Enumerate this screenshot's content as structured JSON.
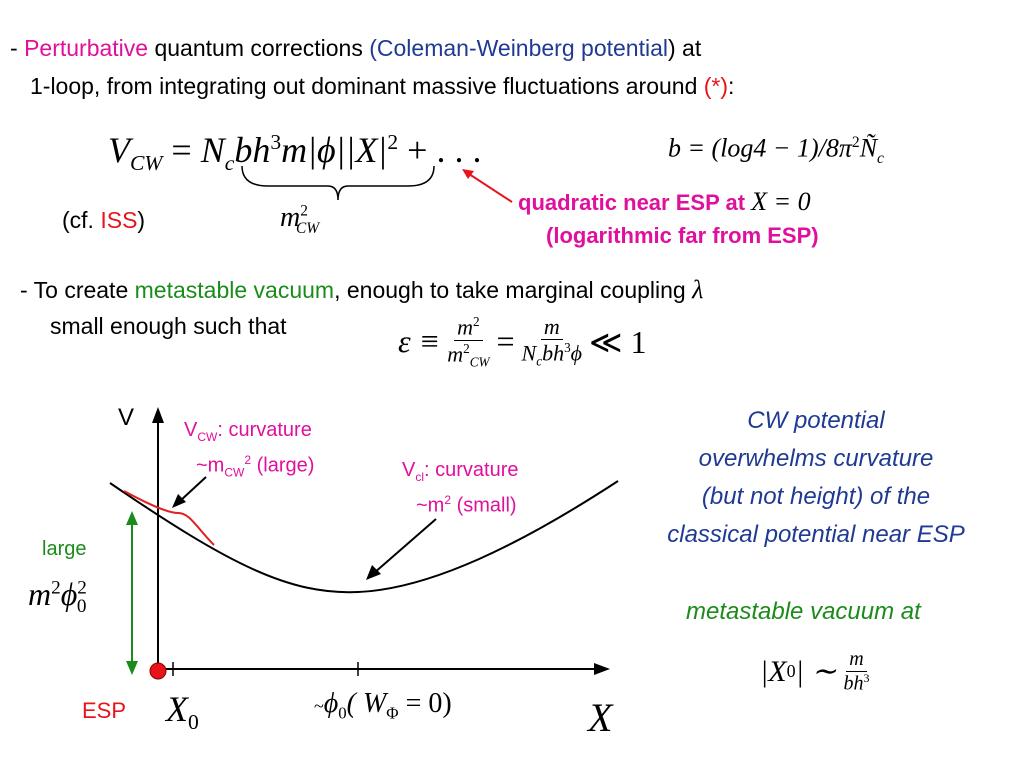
{
  "bullet1": {
    "dash": "- ",
    "perturbative": "Perturbative",
    "part_a": " quantum corrections ",
    "cw_paren": "(Coleman-Weinberg potential",
    "part_b": ") at",
    "line2": "1-loop, from integrating out dominant massive fluctuations around ",
    "star": "(*)",
    "colon": ":"
  },
  "eq_cw": {
    "lhs": "V",
    "lhs_sub": "CW",
    "eq": " = ",
    "term": "N",
    "term_sub": "c",
    "term_rest": "bh",
    "exp3": "3",
    "m_phi": "m|ϕ|",
    "absX": "|X|",
    "exp2": "2",
    "dots": " + . . .",
    "brace_label": "m",
    "brace_label_sup": "2",
    "brace_label_sub": "CW"
  },
  "eq_b": {
    "text": "b = (log4 − 1)/8π",
    "sup": "2",
    "n": "Ñ",
    "n_sub": "c"
  },
  "cf_iss": {
    "open": "(cf. ",
    "iss": "ISS",
    "close": ")"
  },
  "note_quadratic": {
    "line1": "quadratic near ESP at ",
    "x0": "X = 0",
    "line2": "(logarithmic far from ESP)"
  },
  "bullet2": {
    "dash": "-  To create ",
    "metastable": "metastable vacuum",
    "rest": ", enough to take marginal coupling ",
    "lambda": "λ",
    "line2": "small enough such that"
  },
  "eq_eps": {
    "eps": "ε ≡ ",
    "num1": "m",
    "num1_sup": "2",
    "den1": "m",
    "den1_sup": "2",
    "den1_sub": "CW",
    "eq": " = ",
    "num2": "m",
    "den2": "N",
    "den2_sub": "c",
    "den2_rest": "bh",
    "den2_sup": "3",
    "den2_phi": "ϕ",
    "ll": " ≪ 1"
  },
  "graph": {
    "v_axis": "V",
    "x_axis": "X",
    "vcw_label_a": "V",
    "vcw_label_sub": "CW",
    "vcw_label_b": ": curvature",
    "vcw_line2_a": "~m",
    "vcw_line2_sub": "CW",
    "vcw_line2_sup": "2",
    "vcw_line2_b": " (large)",
    "vcl_label_a": "V",
    "vcl_label_sub": "cl",
    "vcl_label_b": ": curvature",
    "vcl_line2_a": "~m",
    "vcl_line2_sup": "2",
    "vcl_line2_b": " (small)",
    "large": "large",
    "m2phi": "m",
    "m2phi_sup": "2",
    "m2phi_phi": "ϕ",
    "m2phi_phi_sup": "2",
    "m2phi_phi_sub": "0",
    "esp": "ESP",
    "x0_label": "X",
    "x0_sub": "0",
    "phi0_tilde": "~",
    "phi0": "ϕ",
    "phi0_sub": "0",
    "w_phi": "( W",
    "w_phi_sub": "Φ",
    "w_phi_rest": " = 0)"
  },
  "cw_note": {
    "line1": "CW potential",
    "line2": "overwhelms curvature",
    "line3": "(but not height) of the",
    "line4": "classical potential near ESP"
  },
  "meta_note": {
    "text": "metastable vacuum at",
    "lhs": "|X",
    "lhs_sub": "0",
    "lhs_close": "| ∼ ",
    "num": "m",
    "den": "bh",
    "den_sup": "3"
  },
  "colors": {
    "magenta": "#e0109c",
    "red": "#e8141c",
    "blue": "#1f3a93",
    "green": "#1b8c1b",
    "curve_red": "#e02020",
    "esp_dot": "#e8141c"
  }
}
